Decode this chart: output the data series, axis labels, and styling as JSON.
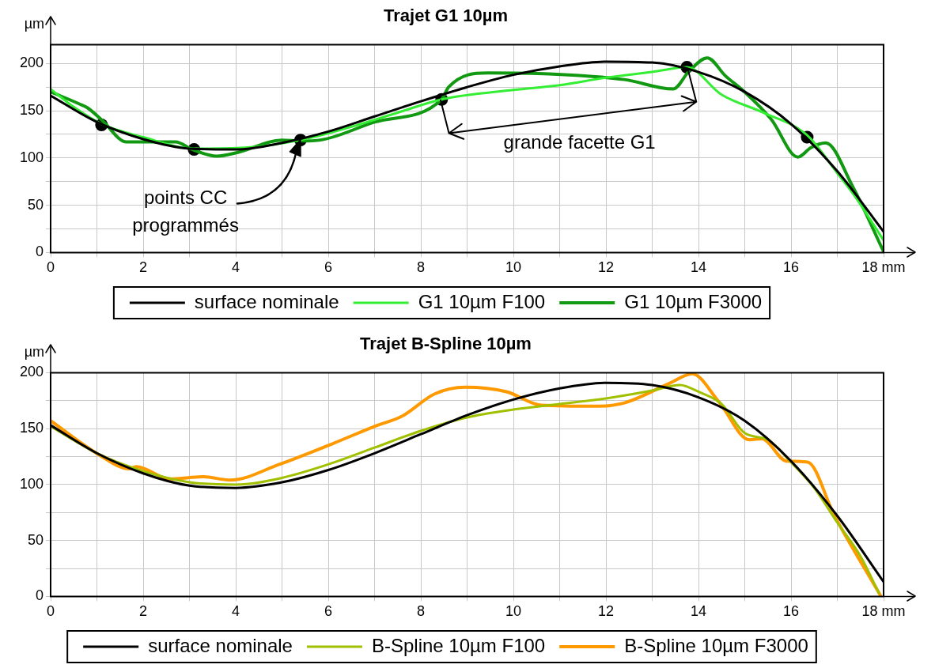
{
  "chart_data": [
    {
      "type": "line",
      "title": "Trajet G1 10µm",
      "ylabel": "µm",
      "xlim": [
        0,
        18
      ],
      "ylim": [
        0,
        220
      ],
      "xticks": [
        0,
        {
          "value": 1,
          "label": null
        },
        2,
        {
          "value": 3,
          "label": null
        },
        4,
        {
          "value": 5,
          "label": null
        },
        6,
        {
          "value": 7,
          "label": null
        },
        8,
        {
          "value": 9,
          "label": null
        },
        10,
        {
          "value": 11,
          "label": null
        },
        12,
        {
          "value": 13,
          "label": null
        },
        14,
        {
          "value": 15,
          "label": null
        },
        16,
        {
          "value": 17,
          "label": null
        },
        {
          "value": 18,
          "label": "18 mm"
        }
      ],
      "yticks": [
        0,
        {
          "value": 25,
          "label": null
        },
        50,
        {
          "value": 75,
          "label": null
        },
        100,
        {
          "value": 125,
          "label": null
        },
        150,
        {
          "value": 175,
          "label": null
        },
        200
      ],
      "grid": true,
      "legend": "bottom",
      "series": [
        {
          "name": "surface nominale",
          "color": "#000000",
          "x": [
            0,
            1,
            2,
            3,
            4,
            5,
            6,
            7,
            8,
            9,
            10,
            11,
            12,
            13,
            14,
            15,
            16,
            17,
            18
          ],
          "values": [
            166,
            138,
            120,
            110,
            109,
            116,
            128,
            144,
            160,
            175,
            188,
            197,
            202,
            201,
            191,
            170,
            136,
            86,
            22
          ]
        },
        {
          "name": "G1 10µm F100",
          "color": "#33ee33",
          "x": [
            0,
            0.5,
            1.1,
            2,
            3.1,
            4.2,
            5.4,
            6.5,
            7.5,
            8.45,
            10,
            11,
            12,
            13,
            13.75,
            14.5,
            15.4,
            16.35,
            17,
            17.33,
            18
          ],
          "values": [
            173,
            154,
            136,
            122,
            110,
            111,
            119,
            133,
            148,
            162,
            172,
            177,
            185,
            191,
            196,
            167,
            148,
            124,
            84,
            63,
            13
          ]
        },
        {
          "name": "G1 10µm F3000",
          "color": "#119911",
          "x": [
            0,
            0.63,
            0.8,
            1.11,
            1.64,
            2.7,
            3.06,
            3.59,
            4.05,
            5.0,
            5.42,
            5.83,
            7,
            8.45,
            8.6,
            9.45,
            10.77,
            12.4,
            13.45,
            13.8,
            14.19,
            14.58,
            14.97,
            15.57,
            16.15,
            16.43,
            16.75,
            17.33,
            18
          ],
          "values": [
            170,
            157,
            153,
            140,
            117,
            117,
            109,
            102,
            106,
            119,
            118,
            119,
            138,
            162,
            175,
            190,
            189,
            183,
            173,
            192,
            206,
            187,
            171,
            141,
            101,
            111,
            116,
            70,
            1
          ]
        },
        {
          "type": "scatter",
          "marker": "circle",
          "color": "#000000",
          "x": [
            1.1,
            3.1,
            5.4,
            8.45,
            13.75,
            16.35
          ],
          "values": [
            135,
            109,
            119,
            162,
            196,
            122
          ]
        }
      ],
      "annotations": [
        "points CC programmés",
        "grande facette G1"
      ]
    },
    {
      "type": "line",
      "title": "Trajet B-Spline 10µm",
      "ylabel": "µm",
      "xlim": [
        0,
        18
      ],
      "ylim": [
        0,
        200
      ],
      "xticks": [
        0,
        {
          "value": 1,
          "label": null
        },
        2,
        {
          "value": 3,
          "label": null
        },
        4,
        {
          "value": 5,
          "label": null
        },
        6,
        {
          "value": 7,
          "label": null
        },
        8,
        {
          "value": 9,
          "label": null
        },
        10,
        {
          "value": 11,
          "label": null
        },
        12,
        {
          "value": 13,
          "label": null
        },
        14,
        {
          "value": 15,
          "label": null
        },
        16,
        {
          "value": 17,
          "label": null
        },
        {
          "value": 18,
          "label": "18 mm"
        }
      ],
      "yticks": [
        0,
        {
          "value": 25,
          "label": null
        },
        50,
        {
          "value": 75,
          "label": null
        },
        100,
        {
          "value": 125,
          "label": null
        },
        150,
        {
          "value": 175,
          "label": null
        },
        200
      ],
      "grid": true,
      "legend": "bottom",
      "series": [
        {
          "name": "surface nominale",
          "color": "#000000",
          "x": [
            0,
            1,
            2,
            3,
            4,
            5,
            6,
            7,
            8,
            9,
            10,
            11,
            12,
            13,
            14,
            15,
            16,
            17,
            18
          ],
          "values": [
            153,
            128,
            110,
            99,
            97,
            102,
            113,
            128,
            145,
            162,
            176,
            186,
            191,
            189,
            178,
            157,
            121,
            72,
            13
          ]
        },
        {
          "name": "B-Spline 10µm F100",
          "color": "#a0c000",
          "x": [
            0,
            1,
            2,
            3,
            4,
            5,
            6,
            7,
            8,
            9,
            10,
            11,
            12,
            13,
            13.6,
            14,
            14.5,
            15,
            15.5,
            16,
            16.5,
            17,
            17.5,
            17.9
          ],
          "values": [
            152,
            128,
            112,
            102,
            100,
            106,
            118,
            133,
            148,
            160,
            167,
            172,
            177,
            184,
            189,
            183,
            172,
            146,
            140,
            120,
            97,
            66,
            36,
            3
          ]
        },
        {
          "name": "B-Spline 10µm F3000",
          "color": "#ff9900",
          "x": [
            0,
            1.03,
            1.7,
            1.85,
            2.58,
            3.3,
            3.88,
            4.94,
            6.12,
            7.0,
            7.59,
            8.3,
            8.96,
            9.85,
            10.6,
            11.8,
            12.4,
            13.4,
            13.86,
            14.44,
            15.1,
            15.37,
            15.9,
            16.36,
            16.94,
            17.93
          ],
          "values": [
            157,
            127,
            114,
            116,
            105,
            107,
            104,
            118,
            137,
            152,
            161,
            181,
            187,
            183,
            171,
            170,
            173,
            191,
            199,
            174,
            140,
            141,
            121,
            120,
            72,
            1
          ]
        }
      ]
    }
  ]
}
